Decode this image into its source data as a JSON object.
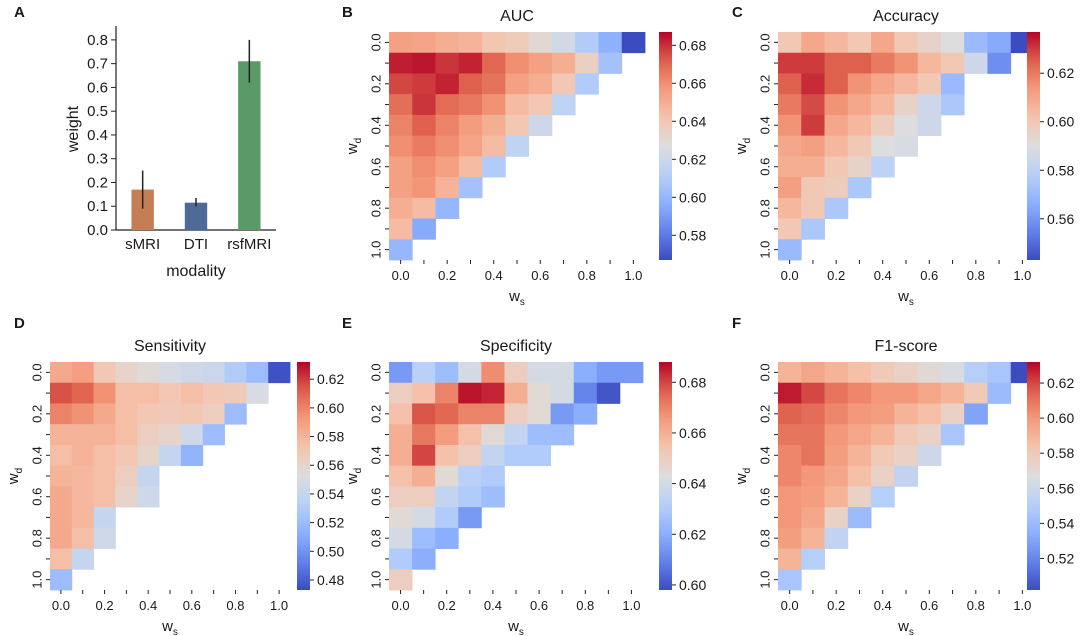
{
  "chart_data": [
    {
      "type": "bar",
      "panel_letter": "A",
      "title": "",
      "xlabel": "modality",
      "ylabel": "weight",
      "ylim": [
        0,
        0.85
      ],
      "yticks": [
        "0.0",
        "0.1",
        "0.2",
        "0.3",
        "0.4",
        "0.5",
        "0.6",
        "0.7",
        "0.8"
      ],
      "categories": [
        "sMRI",
        "DTI",
        "rsfMRI"
      ],
      "values": [
        0.17,
        0.115,
        0.71
      ],
      "error_low": [
        0.09,
        0.1,
        0.62
      ],
      "error_high": [
        0.25,
        0.135,
        0.8
      ],
      "colors": [
        "#c47d55",
        "#4d6a99",
        "#5a9a68"
      ],
      "error_color": "#222222"
    },
    {
      "type": "heatmap",
      "panel_letter": "B",
      "title": "AUC",
      "xlabel": "w_s",
      "ylabel": "w_d",
      "x_tick_labels": [
        "0.0",
        "0.2",
        "0.4",
        "0.6",
        "0.8",
        "1.0"
      ],
      "y_tick_labels": [
        "0.0",
        "0.2",
        "0.4",
        "0.6",
        "0.8",
        "1.0"
      ],
      "vmin": 0.567,
      "vmax": 0.687,
      "colorbar_ticks": [
        "0.68",
        "0.66",
        "0.64",
        "0.62",
        "0.60",
        "0.58"
      ],
      "values": [
        [
          0.655,
          0.653,
          0.65,
          0.648,
          0.641,
          0.638,
          0.63,
          0.622,
          0.61,
          0.598,
          0.567
        ],
        [
          0.683,
          0.684,
          0.679,
          0.682,
          0.67,
          0.66,
          0.655,
          0.65,
          0.635,
          0.605
        ],
        [
          0.676,
          0.678,
          0.682,
          0.672,
          0.667,
          0.655,
          0.65,
          0.64,
          0.61
        ],
        [
          0.668,
          0.679,
          0.669,
          0.666,
          0.659,
          0.645,
          0.64,
          0.615
        ],
        [
          0.663,
          0.672,
          0.663,
          0.656,
          0.65,
          0.64,
          0.62
        ],
        [
          0.66,
          0.665,
          0.66,
          0.653,
          0.645,
          0.615
        ],
        [
          0.655,
          0.66,
          0.655,
          0.645,
          0.61
        ],
        [
          0.655,
          0.658,
          0.648,
          0.605
        ],
        [
          0.65,
          0.645,
          0.6
        ],
        [
          0.645,
          0.595
        ],
        [
          0.6
        ]
      ]
    },
    {
      "type": "heatmap",
      "panel_letter": "C",
      "title": "Accuracy",
      "xlabel": "w_s",
      "ylabel": "w_d",
      "x_tick_labels": [
        "0.0",
        "0.2",
        "0.4",
        "0.6",
        "0.8",
        "1.0"
      ],
      "y_tick_labels": [
        "0.0",
        "0.2",
        "0.4",
        "0.6",
        "0.8",
        "1.0"
      ],
      "vmin": 0.543,
      "vmax": 0.637,
      "colorbar_ticks": [
        "0.62",
        "0.60",
        "0.58",
        "0.56"
      ],
      "values": [
        [
          0.6,
          0.61,
          0.605,
          0.6,
          0.61,
          0.6,
          0.595,
          0.59,
          0.57,
          0.565,
          0.543
        ],
        [
          0.63,
          0.63,
          0.625,
          0.625,
          0.62,
          0.615,
          0.605,
          0.6,
          0.585,
          0.558
        ],
        [
          0.625,
          0.632,
          0.625,
          0.615,
          0.61,
          0.605,
          0.6,
          0.57
        ],
        [
          0.62,
          0.628,
          0.615,
          0.61,
          0.605,
          0.595,
          0.585,
          0.575
        ],
        [
          0.615,
          0.63,
          0.61,
          0.605,
          0.598,
          0.59,
          0.585
        ],
        [
          0.61,
          0.612,
          0.605,
          0.6,
          0.59,
          0.588
        ],
        [
          0.608,
          0.608,
          0.6,
          0.595,
          0.58
        ],
        [
          0.612,
          0.6,
          0.598,
          0.575
        ],
        [
          0.605,
          0.6,
          0.575
        ],
        [
          0.6,
          0.575
        ],
        [
          0.57
        ]
      ]
    },
    {
      "type": "heatmap",
      "panel_letter": "D",
      "title": "Sensitivity",
      "xlabel": "w_s",
      "ylabel": "w_d",
      "x_tick_labels": [
        "0.0",
        "0.2",
        "0.4",
        "0.6",
        "0.8",
        "1.0"
      ],
      "y_tick_labels": [
        "0.0",
        "0.2",
        "0.4",
        "0.6",
        "0.8",
        "1.0"
      ],
      "vmin": 0.473,
      "vmax": 0.632,
      "colorbar_ticks": [
        "0.62",
        "0.60",
        "0.58",
        "0.56",
        "0.54",
        "0.52",
        "0.50",
        "0.48"
      ],
      "values": [
        [
          0.585,
          0.59,
          0.57,
          0.56,
          0.555,
          0.548,
          0.545,
          0.542,
          0.53,
          0.52,
          0.475
        ],
        [
          0.615,
          0.61,
          0.595,
          0.575,
          0.575,
          0.57,
          0.575,
          0.57,
          0.568,
          0.55
        ],
        [
          0.6,
          0.595,
          0.585,
          0.575,
          0.57,
          0.568,
          0.57,
          0.565,
          0.52
        ],
        [
          0.58,
          0.58,
          0.58,
          0.575,
          0.565,
          0.56,
          0.545,
          0.52
        ],
        [
          0.575,
          0.58,
          0.575,
          0.57,
          0.56,
          0.54,
          0.515
        ],
        [
          0.58,
          0.578,
          0.575,
          0.565,
          0.54
        ],
        [
          0.585,
          0.578,
          0.575,
          0.56,
          0.545
        ],
        [
          0.585,
          0.578,
          0.54
        ],
        [
          0.585,
          0.575,
          0.545
        ],
        [
          0.575,
          0.54
        ],
        [
          0.52
        ]
      ]
    },
    {
      "type": "heatmap",
      "panel_letter": "E",
      "title": "Specificity",
      "xlabel": "w_s",
      "ylabel": "w_d",
      "x_tick_labels": [
        "0.0",
        "0.2",
        "0.4",
        "0.6",
        "0.8",
        "1.0"
      ],
      "y_tick_labels": [
        "0.0",
        "0.2",
        "0.4",
        "0.6",
        "0.8",
        "1.0"
      ],
      "vmin": 0.598,
      "vmax": 0.688,
      "colorbar_ticks": [
        "0.68",
        "0.66",
        "0.64",
        "0.62",
        "0.60"
      ],
      "values": [
        [
          0.615,
          0.632,
          0.625,
          0.64,
          0.668,
          0.65,
          0.64,
          0.64,
          0.62,
          0.615,
          0.615
        ],
        [
          0.65,
          0.655,
          0.67,
          0.686,
          0.684,
          0.66,
          0.645,
          0.64,
          0.61,
          0.6
        ],
        [
          0.655,
          0.678,
          0.675,
          0.67,
          0.67,
          0.65,
          0.645,
          0.615,
          0.62
        ],
        [
          0.66,
          0.672,
          0.665,
          0.655,
          0.645,
          0.635,
          0.625,
          0.625
        ],
        [
          0.66,
          0.68,
          0.655,
          0.65,
          0.635,
          0.63,
          0.63
        ],
        [
          0.655,
          0.66,
          0.645,
          0.632,
          0.63
        ],
        [
          0.65,
          0.65,
          0.635,
          0.63,
          0.625
        ],
        [
          0.645,
          0.64,
          0.63,
          0.615
        ],
        [
          0.64,
          0.625,
          0.62
        ],
        [
          0.63,
          0.62
        ],
        [
          0.65
        ]
      ]
    },
    {
      "type": "heatmap",
      "panel_letter": "F",
      "title": "F1-score",
      "xlabel": "w_s",
      "ylabel": "w_d",
      "x_tick_labels": [
        "0.0",
        "0.2",
        "0.4",
        "0.6",
        "0.8",
        "1.0"
      ],
      "y_tick_labels": [
        "0.0",
        "0.2",
        "0.4",
        "0.6",
        "0.8",
        "1.0"
      ],
      "vmin": 0.502,
      "vmax": 0.632,
      "colorbar_ticks": [
        "0.62",
        "0.60",
        "0.58",
        "0.56",
        "0.54",
        "0.52"
      ],
      "values": [
        [
          0.59,
          0.595,
          0.59,
          0.585,
          0.58,
          0.575,
          0.57,
          0.565,
          0.55,
          0.545,
          0.502
        ],
        [
          0.628,
          0.62,
          0.61,
          0.605,
          0.6,
          0.6,
          0.595,
          0.59,
          0.58,
          0.54
        ],
        [
          0.615,
          0.612,
          0.605,
          0.6,
          0.598,
          0.59,
          0.585,
          0.575,
          0.53
        ],
        [
          0.61,
          0.61,
          0.6,
          0.595,
          0.59,
          0.58,
          0.575,
          0.545
        ],
        [
          0.605,
          0.61,
          0.598,
          0.59,
          0.58,
          0.575,
          0.56
        ],
        [
          0.605,
          0.6,
          0.595,
          0.585,
          0.575,
          0.555
        ],
        [
          0.6,
          0.598,
          0.59,
          0.575,
          0.55
        ],
        [
          0.6,
          0.595,
          0.575,
          0.54
        ],
        [
          0.598,
          0.59,
          0.555
        ],
        [
          0.59,
          0.55
        ],
        [
          0.545
        ]
      ]
    }
  ]
}
